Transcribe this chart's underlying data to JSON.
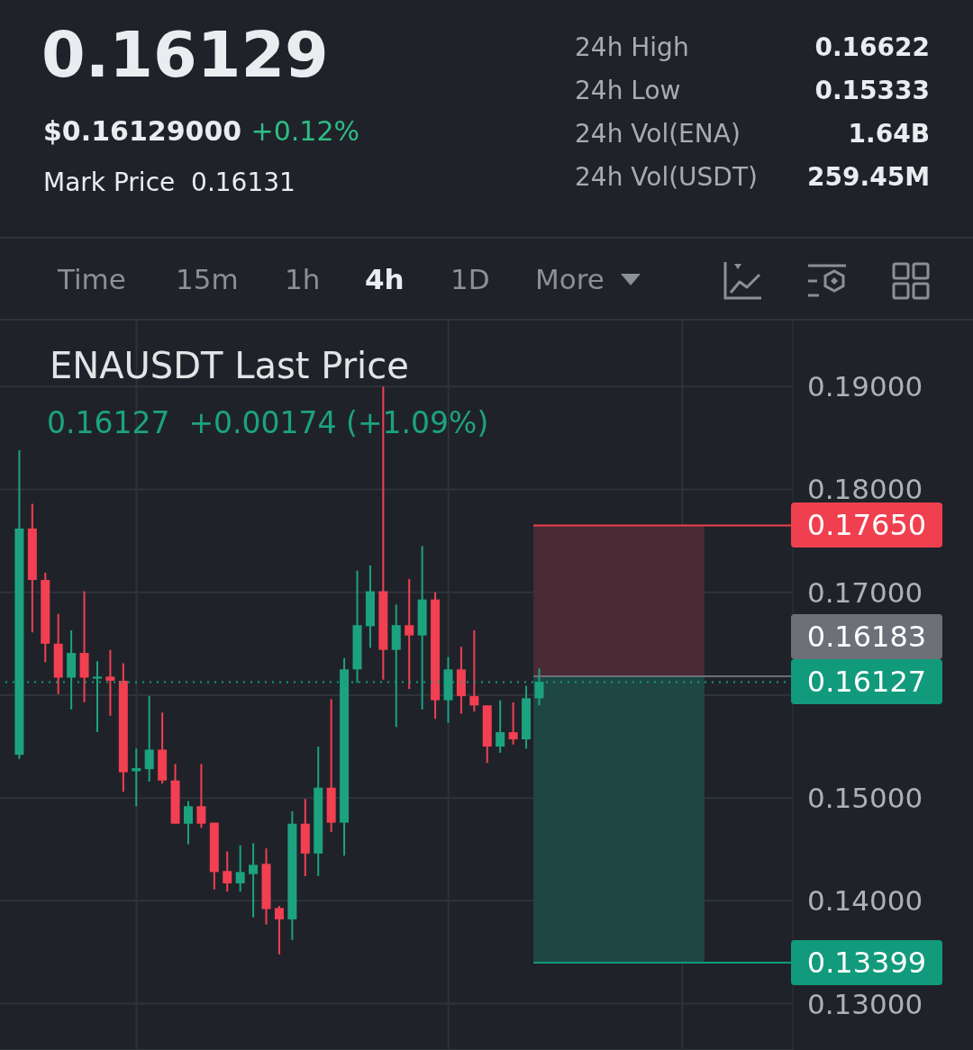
{
  "chart_data": {
    "type": "candlestick",
    "title": "ENAUSDT Last Price",
    "subtitle": "0.16127  +0.00174 (+1.09%)",
    "annotations": [
      "0.16129",
      "$0.16129000",
      "+0.12%",
      "Mark Price",
      "0.16131",
      "24h High",
      "0.16622",
      "24h Low",
      "0.15333",
      "24h Vol(ENA)",
      "1.64B",
      "24h Vol(USDT)",
      "259.45M",
      "Time",
      "15m",
      "1h",
      "4h",
      "1D",
      "More"
    ],
    "categories": [
      null,
      null,
      null,
      null,
      null,
      null,
      null,
      null,
      null,
      null,
      null,
      null,
      null,
      null,
      null,
      null,
      null,
      null,
      null,
      null,
      null,
      null,
      null,
      null,
      null,
      null,
      null,
      null,
      null,
      null,
      null,
      null,
      null,
      null,
      null,
      null,
      null,
      null,
      null,
      null,
      null,
      null,
      null,
      null,
      null,
      null,
      null,
      null,
      null,
      null,
      null,
      null,
      null,
      null,
      null,
      null,
      null,
      null,
      null,
      null,
      null
    ],
    "ohlc": [
      null,
      [
        0.1542,
        0.1838,
        0.1538,
        0.1762
      ],
      [
        0.1762,
        0.1786,
        0.1661,
        0.1712
      ],
      [
        0.1712,
        0.1719,
        0.1632,
        0.165
      ],
      [
        0.165,
        0.1679,
        0.1601,
        0.1617
      ],
      [
        0.1617,
        0.1663,
        0.1586,
        0.1641
      ],
      [
        0.1641,
        0.1701,
        0.1593,
        0.1617
      ],
      [
        0.1616,
        0.1633,
        0.1564,
        0.1618
      ],
      [
        0.1618,
        0.1644,
        0.158,
        0.1614
      ],
      [
        0.1614,
        0.1631,
        0.1506,
        0.1525
      ],
      [
        0.1526,
        0.1548,
        0.1492,
        0.1529
      ],
      [
        0.1528,
        0.1599,
        0.1516,
        0.1547
      ],
      [
        0.1547,
        0.1583,
        0.1514,
        0.1517
      ],
      [
        0.1517,
        0.1533,
        0.1475,
        0.1475
      ],
      [
        0.1475,
        0.1497,
        0.1455,
        0.1492
      ],
      [
        0.1492,
        0.1533,
        0.1471,
        0.1475
      ],
      [
        0.1476,
        0.1476,
        0.1411,
        0.1428
      ],
      [
        0.1429,
        0.1448,
        0.1409,
        0.1417
      ],
      [
        0.1417,
        0.1454,
        0.1409,
        0.1428
      ],
      [
        0.1426,
        0.1456,
        0.1384,
        0.1435
      ],
      [
        0.1436,
        0.1451,
        0.1377,
        0.1392
      ],
      [
        0.1393,
        0.1395,
        0.1348,
        0.1382
      ],
      [
        0.1382,
        0.1487,
        0.1362,
        0.1475
      ],
      [
        0.1475,
        0.1499,
        0.1424,
        0.1446
      ],
      [
        0.1446,
        0.155,
        0.1424,
        0.151
      ],
      [
        0.151,
        0.1596,
        0.1467,
        0.1476
      ],
      [
        0.1476,
        0.1636,
        0.1444,
        0.1625
      ],
      [
        0.1625,
        0.1721,
        0.1612,
        0.1668
      ],
      [
        0.1667,
        0.1726,
        0.1646,
        0.1701
      ],
      [
        0.1701,
        0.19,
        0.1615,
        0.1644
      ],
      [
        0.1644,
        0.1688,
        0.1569,
        0.1668
      ],
      [
        0.1668,
        0.1713,
        0.1606,
        0.1658
      ],
      [
        0.1658,
        0.1745,
        0.1586,
        0.1693
      ],
      [
        0.1693,
        0.17,
        0.1577,
        0.1595
      ],
      [
        0.1595,
        0.1637,
        0.1573,
        0.1625
      ],
      [
        0.1625,
        0.1647,
        0.1582,
        0.1599
      ],
      [
        0.1599,
        0.1663,
        0.1584,
        0.159
      ],
      [
        0.159,
        0.159,
        0.1534,
        0.155
      ],
      [
        0.155,
        0.1595,
        0.1544,
        0.1564
      ],
      [
        0.1564,
        0.1593,
        0.1552,
        0.1557
      ],
      [
        0.1557,
        0.1609,
        0.1548,
        0.1597
      ],
      [
        0.1597,
        0.1626,
        0.159,
        0.1613
      ],
      null,
      null,
      null,
      null,
      null,
      null,
      null,
      null,
      null,
      null,
      null,
      null,
      null,
      null,
      null,
      null,
      null,
      null,
      null
    ],
    "colors": [
      null,
      "#1da27f",
      "#f23f52",
      "#f23f52",
      "#f23f52",
      "#1da27f",
      "#f23f52",
      "#1da27f",
      "#f23f52",
      "#f23f52",
      "#1da27f",
      "#1da27f",
      "#f23f52",
      "#f23f52",
      "#1da27f",
      "#f23f52",
      "#f23f52",
      "#f23f52",
      "#1da27f",
      "#1da27f",
      "#f23f52",
      "#f23f52",
      "#1da27f",
      "#f23f52",
      "#1da27f",
      "#f23f52",
      "#1da27f",
      "#1da27f",
      "#1da27f",
      "#f23f52",
      "#1da27f",
      "#f23f52",
      "#1da27f",
      "#f23f52",
      "#1da27f",
      "#f23f52",
      "#f23f52",
      "#f23f52",
      "#1da27f",
      "#f23f52",
      "#1da27f",
      "#1da27f",
      null,
      null,
      null,
      null,
      null,
      null,
      null,
      null,
      null,
      null,
      null,
      null,
      null,
      null,
      null,
      null,
      null,
      null,
      null
    ],
    "ylim": [
      0.1255,
      0.1965
    ],
    "yticks": [
      {
        "value": 0.13,
        "label": "0.13000"
      },
      {
        "value": 0.14,
        "label": "0.14000"
      },
      {
        "value": 0.15,
        "label": "0.15000"
      },
      {
        "value": 0.16,
        "label": null
      },
      {
        "value": 0.17,
        "label": "0.17000"
      },
      {
        "value": 0.18,
        "label": "0.18000"
      },
      {
        "value": 0.19,
        "label": "0.19000"
      }
    ],
    "grid": true,
    "tick_labels": "y",
    "bands": [
      {
        "axis": "y",
        "from": 0.16183,
        "to": 0.1765,
        "label": null,
        "color": "#4a2a35"
      },
      {
        "axis": "y",
        "from": 0.13399,
        "to": 0.16183,
        "label": null,
        "color": "#1e4744"
      }
    ],
    "ref_lines": [
      {
        "axis": "y",
        "value": 0.1765,
        "label": "0.17650",
        "color": "#f0404f",
        "line_style": "solid"
      },
      {
        "axis": "y",
        "value": 0.16183,
        "label": "0.16183",
        "color": "#6e7077",
        "line_style": "solid"
      },
      {
        "axis": "y",
        "value": 0.16127,
        "label": "0.16127",
        "color": "#119b7c",
        "line_style": "dotted"
      },
      {
        "axis": "y",
        "value": 0.13399,
        "label": "0.13399",
        "color": "#119b7c",
        "line_style": "solid"
      }
    ]
  }
}
